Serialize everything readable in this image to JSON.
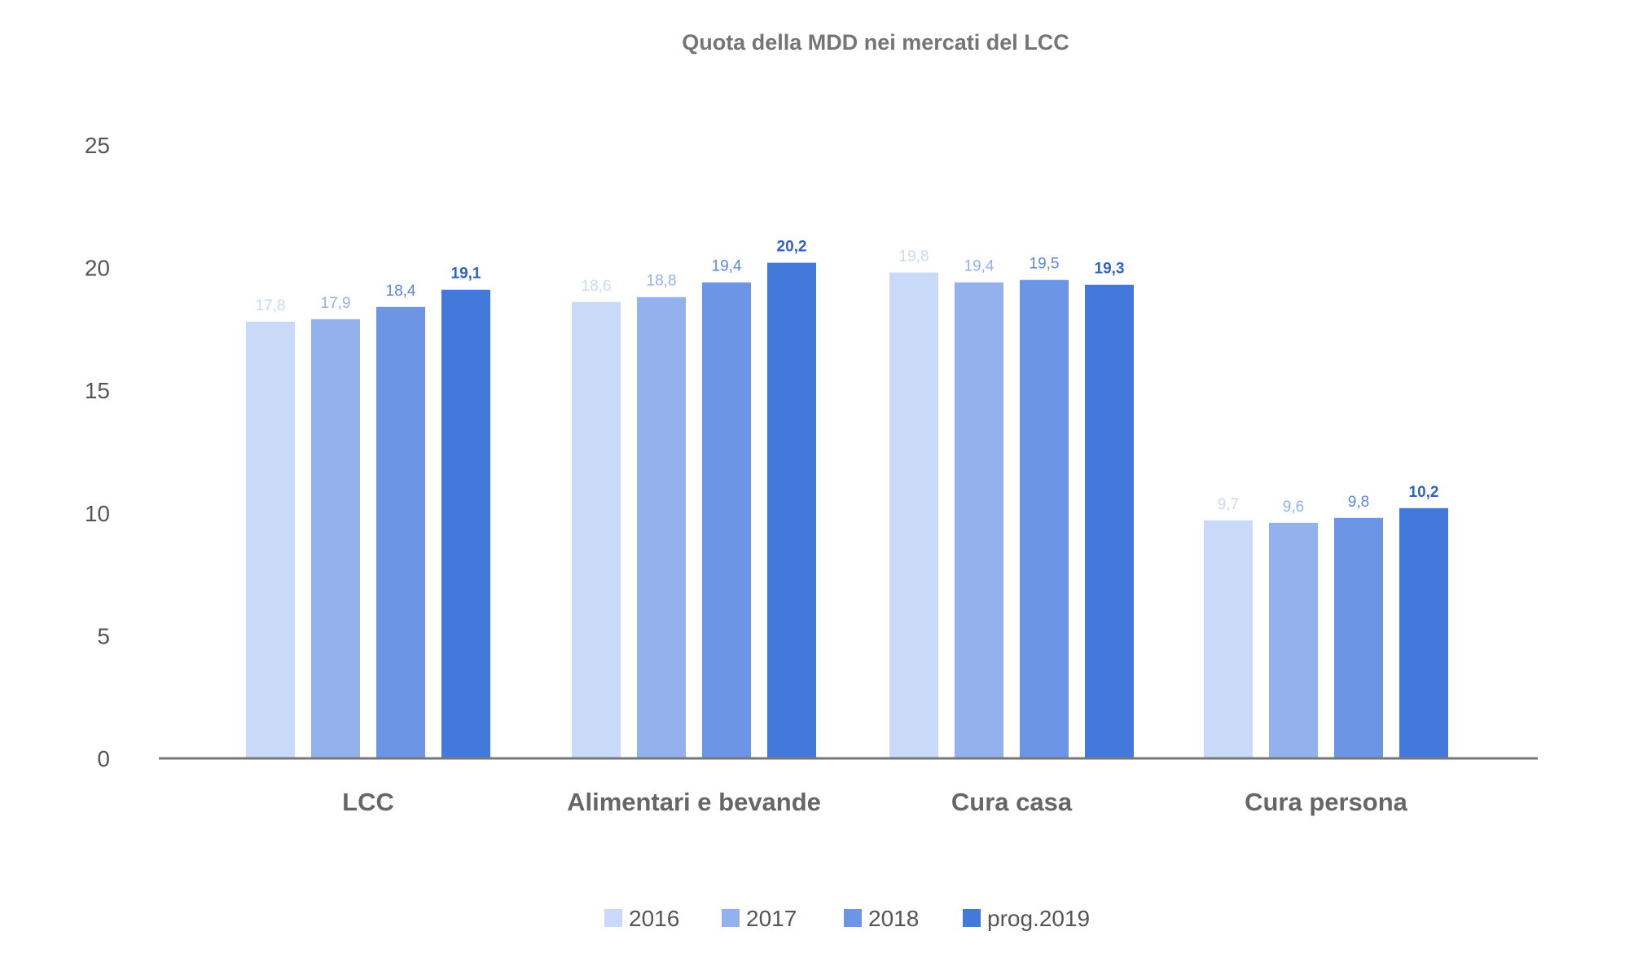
{
  "chart_data": {
    "type": "bar",
    "title": "Quota della MDD nei mercati del LCC",
    "xlabel": "",
    "ylabel": "",
    "categories": [
      "LCC",
      "Alimentari e bevande",
      "Cura casa",
      "Cura persona"
    ],
    "series": [
      {
        "name": "2016",
        "values": [
          17.8,
          18.6,
          19.8,
          9.7
        ],
        "value_labels": [
          "17,8",
          "18,6",
          "19,8",
          "9,7"
        ],
        "color": "#c9daf8",
        "label_color": "#c9daf8"
      },
      {
        "name": "2017",
        "values": [
          17.9,
          18.8,
          19.4,
          9.6
        ],
        "value_labels": [
          "17,9",
          "18,8",
          "19,4",
          "9,6"
        ],
        "color": "#93b1ec",
        "label_color": "#93b1ec"
      },
      {
        "name": "2018",
        "values": [
          18.4,
          19.4,
          19.5,
          9.8
        ],
        "value_labels": [
          "18,4",
          "19,4",
          "19,5",
          "9,8"
        ],
        "color": "#6d95e5",
        "label_color": "#5b87e0"
      },
      {
        "name": "prog.2019",
        "values": [
          19.1,
          20.2,
          19.3,
          10.2
        ],
        "value_labels": [
          "19,1",
          "20,2",
          "19,3",
          "10,2"
        ],
        "color": "#4479dc",
        "label_color": "#2f64c6"
      }
    ],
    "ylim": [
      0,
      25
    ],
    "yticks": [
      0,
      5,
      10,
      15,
      20,
      25
    ],
    "grid": false,
    "legend_position": "bottom",
    "colors": {
      "title": "#757575",
      "axis_text": "#555555",
      "category_text": "#666666",
      "baseline": "#777777"
    }
  }
}
